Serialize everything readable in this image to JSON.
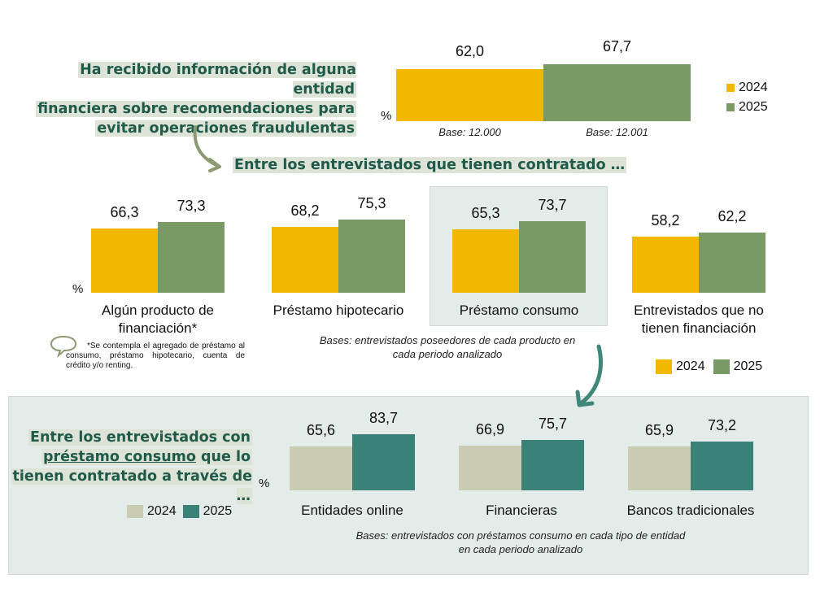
{
  "colors": {
    "y2024_top": "#f2b800",
    "y2025_top": "#7a9a65",
    "y2024_bottom": "#c9ccb3",
    "y2025_bottom": "#3a8278",
    "title_text": "#1f5a4a",
    "title_highlight": "#dde3d7",
    "arrow_top": "#8c9a72",
    "arrow_bottom": "#3f877a",
    "panel_bg": "#e4ecea"
  },
  "top_section": {
    "title_lines": [
      "Ha recibido información de alguna entidad",
      "financiera sobre recomendaciones para",
      "evitar operaciones fraudulentas"
    ],
    "unit": "%",
    "legend": [
      "2024",
      "2025"
    ]
  },
  "middle_section": {
    "title": "Entre los entrevistados que tienen contratado …",
    "unit": "%",
    "footnote": "*Se contempla el agregado de préstamo al consumo, préstamo hipotecario, cuenta de crédito y/o renting.",
    "bases_lines": [
      "Bases: entrevistados poseedores de cada producto en",
      "cada periodo analizado"
    ],
    "legend": [
      "2024",
      "2025"
    ]
  },
  "bottom_section": {
    "title_lines": [
      "Entre los entrevistados con",
      "préstamo consumo",
      " que lo",
      "tienen contratado a través de …"
    ],
    "unit": "%",
    "legend": [
      "2024",
      "2025"
    ],
    "bases_lines": [
      "Bases: entrevistados con préstamos consumo en cada tipo de entidad",
      "en cada periodo analizado"
    ]
  },
  "chart_data": [
    {
      "type": "bar",
      "title": "Ha recibido información de alguna entidad financiera sobre recomendaciones para evitar operaciones fraudulentas",
      "categories": [
        "2024",
        "2025"
      ],
      "values": [
        62.0,
        67.7
      ],
      "labels": [
        "62,0",
        "67,7"
      ],
      "bases": [
        "Base: 12.000",
        "Base: 12.001"
      ],
      "ylabel": "%",
      "ylim": [
        0,
        100
      ],
      "legend": "right"
    },
    {
      "type": "bar",
      "title": "Entre los entrevistados que tienen contratado …",
      "categories": [
        "Algún producto de financiación*",
        "Préstamo hipotecario",
        "Préstamo consumo",
        "Entrevistados que no tienen financiación"
      ],
      "category_lines": [
        [
          "Algún producto de",
          "financiación*"
        ],
        [
          "Préstamo hipotecario"
        ],
        [
          "Préstamo consumo"
        ],
        [
          "Entrevistados que no",
          "tienen financiación"
        ]
      ],
      "series": [
        {
          "name": "2024",
          "values": [
            66.3,
            68.2,
            65.3,
            58.2
          ],
          "labels": [
            "66,3",
            "68,2",
            "65,3",
            "58,2"
          ]
        },
        {
          "name": "2025",
          "values": [
            73.3,
            75.3,
            73.7,
            62.2
          ],
          "labels": [
            "73,3",
            "75,3",
            "73,7",
            "62,2"
          ]
        }
      ],
      "highlighted_category": "Préstamo consumo",
      "ylabel": "%",
      "ylim": [
        0,
        100
      ],
      "legend": "bottom-right"
    },
    {
      "type": "bar",
      "title": "Entre los entrevistados con préstamo consumo que lo tienen contratado a través de …",
      "categories": [
        "Entidades online",
        "Financieras",
        "Bancos tradicionales"
      ],
      "series": [
        {
          "name": "2024",
          "values": [
            65.6,
            66.9,
            65.9
          ],
          "labels": [
            "65,6",
            "66,9",
            "65,9"
          ]
        },
        {
          "name": "2025",
          "values": [
            83.7,
            75.7,
            73.2
          ],
          "labels": [
            "83,7",
            "75,7",
            "73,2"
          ]
        }
      ],
      "ylabel": "%",
      "ylim": [
        0,
        100
      ],
      "legend": "left"
    }
  ]
}
